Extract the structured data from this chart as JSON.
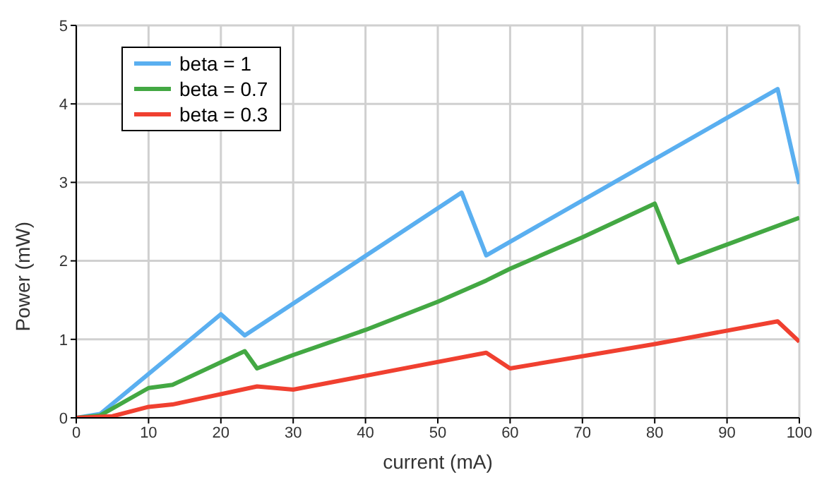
{
  "chart_data": {
    "type": "line",
    "xlabel": "current (mA)",
    "ylabel": "Power (mW)",
    "xlim": [
      0,
      100
    ],
    "xticks": [
      0,
      10,
      20,
      30,
      40,
      50,
      60,
      70,
      80,
      90,
      100
    ],
    "ylim": [
      0,
      5
    ],
    "yticks": [
      0,
      1,
      2,
      3,
      4,
      5
    ],
    "grid": true,
    "legend": "top left",
    "marker": "none",
    "line_style": "solid",
    "series": [
      {
        "name": "beta = 1",
        "color": "#5aaff0",
        "x": [
          0,
          3.3,
          20,
          23.3,
          53.3,
          56.7,
          97,
          100
        ],
        "values": [
          0,
          0.05,
          1.32,
          1.05,
          2.87,
          2.07,
          4.19,
          2.98
        ]
      },
      {
        "name": "beta = 0.7",
        "color": "#43a843",
        "x": [
          0,
          3.3,
          10,
          13.3,
          23.3,
          25,
          30,
          40,
          50,
          56.7,
          60,
          70,
          80,
          83.3,
          100
        ],
        "values": [
          0,
          0.03,
          0.38,
          0.42,
          0.85,
          0.63,
          0.8,
          1.12,
          1.48,
          1.75,
          1.9,
          2.3,
          2.73,
          1.98,
          2.55
        ]
      },
      {
        "name": "beta = 0.3",
        "color": "#f04030",
        "x": [
          0,
          5,
          10,
          13.3,
          25,
          30,
          56.7,
          60,
          80,
          97,
          100
        ],
        "values": [
          0,
          0.02,
          0.14,
          0.17,
          0.4,
          0.36,
          0.83,
          0.63,
          0.94,
          1.23,
          0.97
        ]
      }
    ]
  }
}
